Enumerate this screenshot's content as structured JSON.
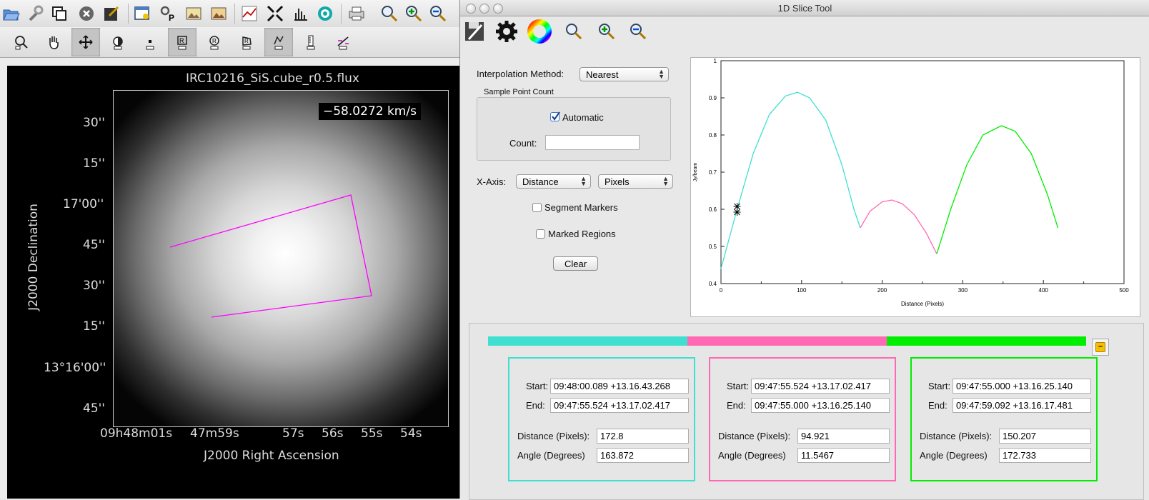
{
  "viewer": {
    "image_title": "IRC10216_SiS.cube_r0.5.flux",
    "velocity_label": "−58.0272 km/s",
    "dec_axis_label": "J2000 Declination",
    "ra_axis_label": "J2000 Right Ascension",
    "dec_ticks": [
      "30''",
      "15''",
      "17'00''",
      "45''",
      "30''",
      "15''",
      "13°16'00''",
      "45''"
    ],
    "ra_ticks": [
      "09h48m01s",
      "47m59s",
      "57s",
      "56s",
      "55s",
      "54s"
    ],
    "region_color": "#ff00ff",
    "toolbar1_icons": [
      "open-folder-icon",
      "wrench-icon",
      "copy-icon",
      "close-circle-icon",
      "save-icon",
      "region-manager-icon",
      "options-icon",
      "image-data-icon",
      "image-export-icon",
      "spectrum-icon",
      "shrink-icon",
      "histogram-icon",
      "target-icon",
      "print-icon",
      "zoom-icon",
      "zoom-in-icon",
      "zoom-out-icon"
    ],
    "toolbar2_icons": [
      "zoom-tool-icon",
      "pan-tool-icon",
      "crosshair-tool-icon",
      "contrast-tool-icon",
      "point-tool-icon",
      "rectangle-region-icon",
      "ellipse-region-icon",
      "polygon-region-icon",
      "polyline-region-icon",
      "ruler-icon",
      "slice-tool-icon"
    ]
  },
  "slice_tool": {
    "window_title": "1D Slice Tool",
    "toolbar_icons": [
      "save-icon",
      "gear-icon",
      "color-wheel-icon",
      "zoom-icon",
      "zoom-in-icon",
      "zoom-out-icon"
    ],
    "interpolation_label": "Interpolation Method:",
    "interpolation_value": "Nearest",
    "sample_group_label": "Sample Point Count",
    "automatic_label": "Automatic",
    "automatic_checked": true,
    "count_label": "Count:",
    "count_value": "",
    "xaxis_label": "X-Axis:",
    "xaxis_value": "Distance",
    "units_value": "Pixels",
    "segment_markers_label": "Segment Markers",
    "marked_regions_label": "Marked Regions",
    "clear_label": "Clear",
    "legend_colors": [
      "#40e0d0",
      "#ff69b4",
      "#00ee00"
    ],
    "minimize_label": "–",
    "segments": [
      {
        "color": "#40e0d0",
        "start_label": "Start:",
        "start": "09:48:00.089  +13.16.43.268",
        "end_label": "End:",
        "end": "09:47:55.524  +13.17.02.417",
        "distance_label": "Distance (Pixels):",
        "distance": "172.8",
        "angle_label": "Angle (Degrees)",
        "angle": "163.872"
      },
      {
        "color": "#ff69b4",
        "start_label": "Start:",
        "start": "09:47:55.524  +13.17.02.417",
        "end_label": "End:",
        "end": "09:47:55.000  +13.16.25.140",
        "distance_label": "Distance (Pixels):",
        "distance": "94.921",
        "angle_label": "Angle (Degrees)",
        "angle": "11.5467"
      },
      {
        "color": "#00ee00",
        "start_label": "Start:",
        "start": "09:47:55.000  +13.16.25.140",
        "end_label": "End:",
        "end": "09:47:59.092  +13.16.17.481",
        "distance_label": "Distance (Pixels):",
        "distance": "150.207",
        "angle_label": "Angle (Degrees)",
        "angle": "172.733"
      }
    ]
  },
  "chart_data": {
    "type": "line",
    "xlabel": "Distance (Pixels)",
    "ylabel": "Jy/beam",
    "xlim": [
      0,
      500
    ],
    "ylim": [
      0.4,
      1.0
    ],
    "xticks": [
      "0",
      "100",
      "200",
      "300",
      "400",
      "500"
    ],
    "yticks": [
      "0.4",
      "0.5",
      "0.6",
      "0.7",
      "0.8",
      "0.9",
      "1"
    ],
    "grid": false,
    "marker": {
      "x": 20,
      "y": 0.6
    },
    "series": [
      {
        "color": "#40e0d0",
        "x": [
          0,
          20,
          40,
          60,
          80,
          95,
          110,
          130,
          150,
          165,
          172.8
        ],
        "y": [
          0.44,
          0.6,
          0.75,
          0.855,
          0.905,
          0.915,
          0.9,
          0.84,
          0.72,
          0.6,
          0.55
        ]
      },
      {
        "color": "#ff69b4",
        "x": [
          172.8,
          185,
          200,
          212,
          225,
          240,
          255,
          267.7
        ],
        "y": [
          0.55,
          0.595,
          0.62,
          0.625,
          0.615,
          0.585,
          0.535,
          0.48
        ]
      },
      {
        "color": "#00ee00",
        "x": [
          267.7,
          285,
          305,
          325,
          348,
          365,
          385,
          405,
          418
        ],
        "y": [
          0.48,
          0.6,
          0.72,
          0.8,
          0.825,
          0.81,
          0.75,
          0.64,
          0.55
        ]
      }
    ]
  }
}
